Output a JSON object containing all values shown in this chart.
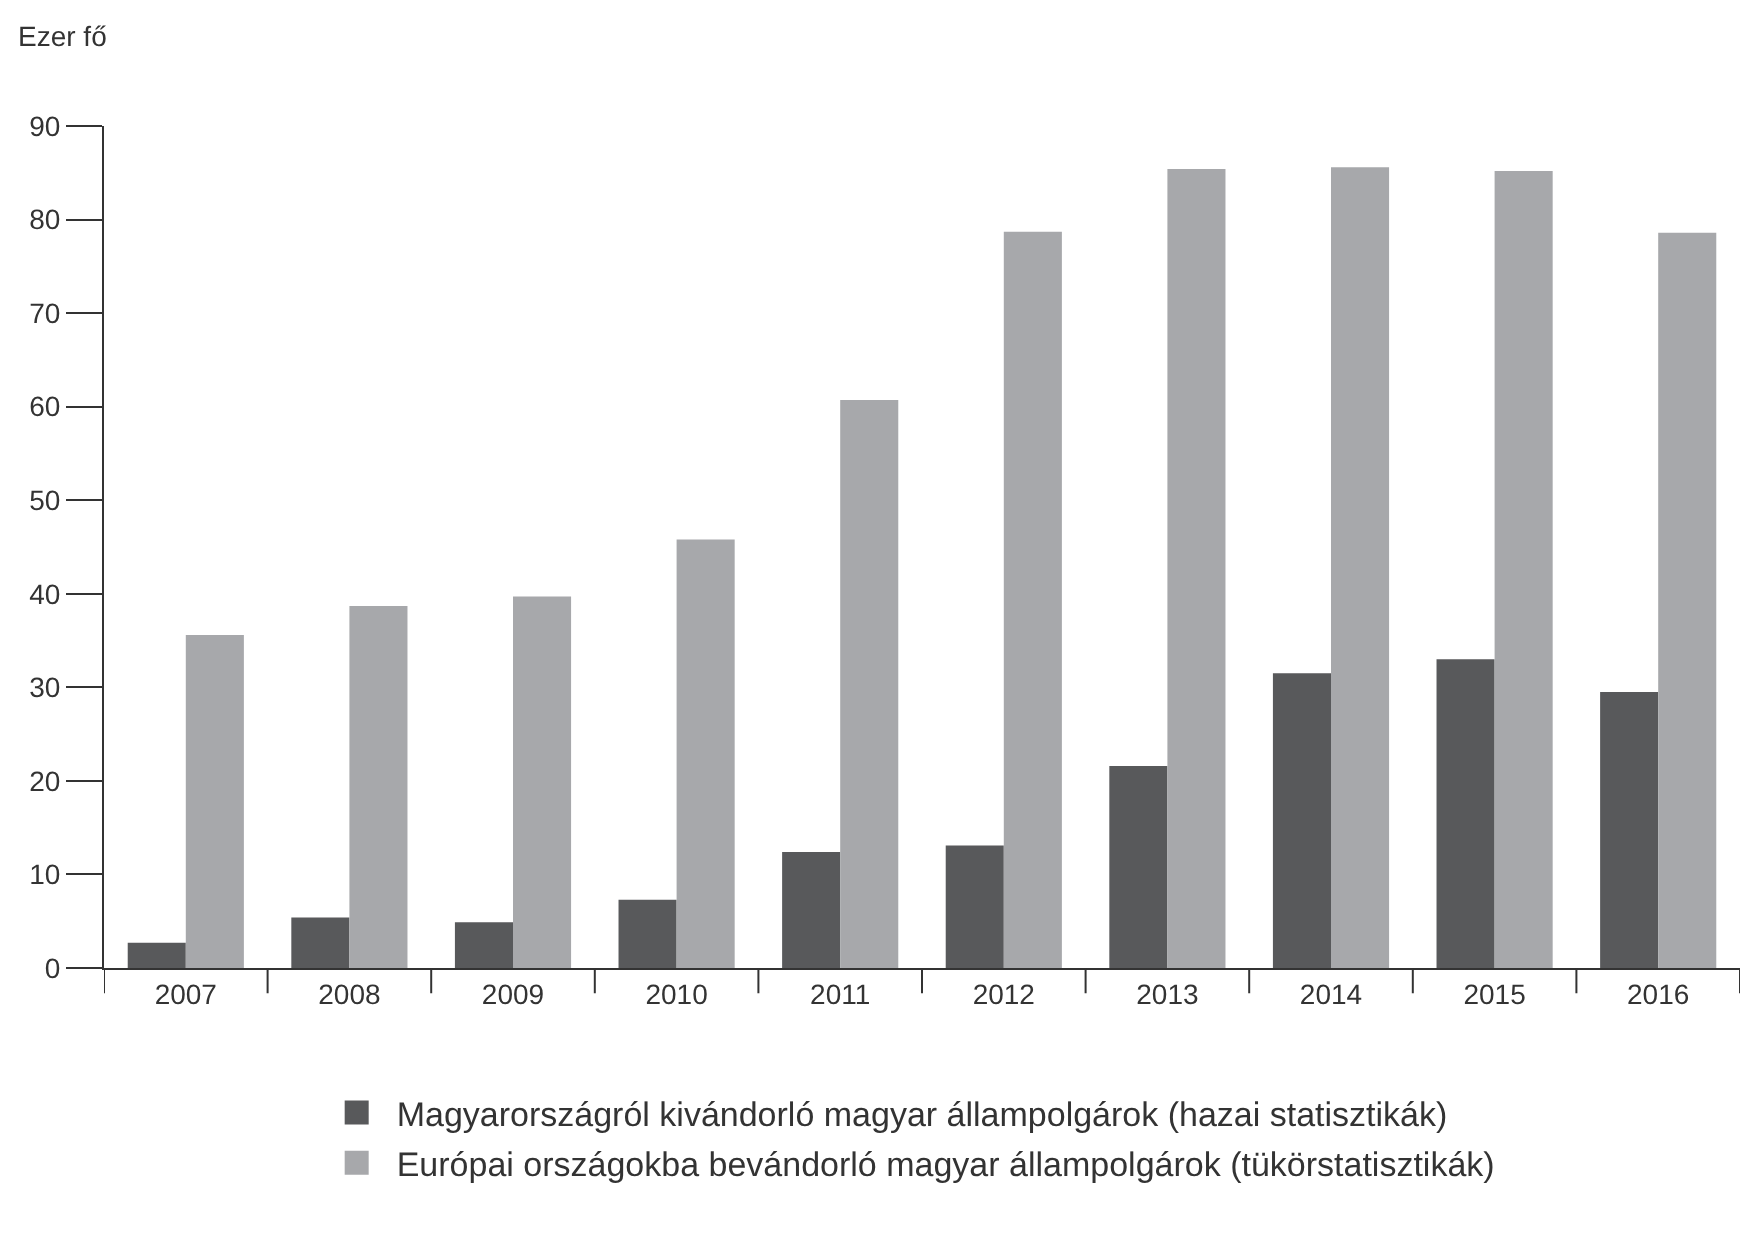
{
  "chart_data": {
    "type": "bar",
    "ylabel": "Ezer fő",
    "categories": [
      "2007",
      "2008",
      "2009",
      "2010",
      "2011",
      "2012",
      "2013",
      "2014",
      "2015",
      "2016"
    ],
    "series": [
      {
        "name": "Magyarországról kivándorló magyar állampolgárok (hazai statisztikák)",
        "color": "#58595b",
        "values": [
          2.7,
          5.4,
          4.9,
          7.3,
          12.4,
          13.1,
          21.6,
          31.5,
          33.0,
          29.5
        ]
      },
      {
        "name": "Európai országokba bevándorló magyar állampolgárok (tükörstatisztikák)",
        "color": "#a7a8ab",
        "values": [
          35.6,
          38.7,
          39.7,
          45.8,
          60.7,
          78.7,
          85.4,
          85.6,
          85.2,
          78.6
        ]
      }
    ],
    "ylim": [
      0,
      90
    ],
    "yticks": [
      0,
      10,
      20,
      30,
      40,
      50,
      60,
      70,
      80,
      90
    ],
    "legend": "bottom"
  }
}
